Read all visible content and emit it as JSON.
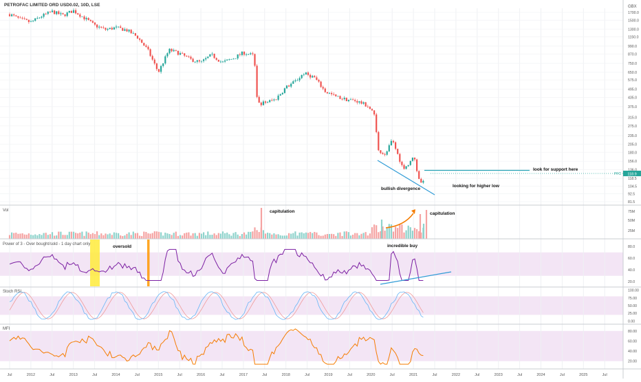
{
  "header": {
    "symbol_title": "PETROFAC LIMITED ORD USD0.02, 10D, LSE",
    "currency": "GBX"
  },
  "colors": {
    "up": "#26a69a",
    "down": "#ef5350",
    "purple": "#7b1fa2",
    "orange": "#f57c00",
    "band": "#f3e5f5",
    "support_line": "#26a3b5",
    "trend_line": "#2f9bd6",
    "highlight_yellow": "#ffeb3b",
    "highlight_orange": "#ff9800",
    "grid": "#eef0f3",
    "axis_text": "#555555"
  },
  "chart_data": [
    {
      "type": "candlestick",
      "title": "PETROFAC LIMITED ORD USD0.02, 10D, LSE",
      "scale": "log",
      "y_ticks": [
        81.5,
        92.5,
        104.5,
        118.5,
        136.0,
        156.0,
        180.0,
        205.0,
        235.0,
        275.0,
        315.0,
        375.0,
        435.0,
        495.0,
        575.0,
        650.0,
        750.0,
        870.0,
        990.0,
        1150.0,
        1300.0,
        1500.0,
        1700.0
      ],
      "last_price_label": "118.9",
      "last_price_tag": "PFC",
      "close_path": [
        [
          "2011-07",
          1650
        ],
        [
          "2011-10",
          1520
        ],
        [
          "2012-01",
          1450
        ],
        [
          "2012-04",
          1600
        ],
        [
          "2012-07",
          1720
        ],
        [
          "2012-10",
          1620
        ],
        [
          "2013-01",
          1750
        ],
        [
          "2013-04",
          1560
        ],
        [
          "2013-07",
          1380
        ],
        [
          "2013-10",
          1290
        ],
        [
          "2014-01",
          1330
        ],
        [
          "2014-04",
          1280
        ],
        [
          "2014-07",
          1150
        ],
        [
          "2014-10",
          930
        ],
        [
          "2015-01",
          650
        ],
        [
          "2015-04",
          930
        ],
        [
          "2015-07",
          880
        ],
        [
          "2015-10",
          800
        ],
        [
          "2016-01",
          760
        ],
        [
          "2016-04",
          860
        ],
        [
          "2016-07",
          760
        ],
        [
          "2016-10",
          810
        ],
        [
          "2017-01",
          890
        ],
        [
          "2017-04",
          850
        ],
        [
          "2017-05",
          390
        ],
        [
          "2017-07",
          400
        ],
        [
          "2017-10",
          420
        ],
        [
          "2018-01",
          510
        ],
        [
          "2018-04",
          570
        ],
        [
          "2018-06",
          640
        ],
        [
          "2018-09",
          600
        ],
        [
          "2018-12",
          480
        ],
        [
          "2019-03",
          440
        ],
        [
          "2019-06",
          420
        ],
        [
          "2019-09",
          410
        ],
        [
          "2019-12",
          380
        ],
        [
          "2020-02",
          330
        ],
        [
          "2020-03",
          190
        ],
        [
          "2020-05",
          170
        ],
        [
          "2020-07",
          220
        ],
        [
          "2020-10",
          140
        ],
        [
          "2020-12",
          150
        ],
        [
          "2021-01",
          175
        ],
        [
          "2021-02",
          135
        ],
        [
          "2021-03",
          108
        ],
        [
          "2021-04",
          118.9
        ]
      ],
      "x_ticks": [
        "Jul",
        "2012",
        "Jul",
        "2013",
        "Jul",
        "2014",
        "Jul",
        "2015",
        "Jul",
        "2016",
        "Jul",
        "2017",
        "Jul",
        "2018",
        "Jul",
        "2019",
        "Jul",
        "2020",
        "Jul",
        "2021",
        "Jul",
        "2022",
        "Jul",
        "2023",
        "Jul",
        "2024",
        "Jul",
        "2025",
        "Jul"
      ],
      "annotations": [
        "look for support here",
        "bullish divergence",
        "looking for higher low"
      ]
    },
    {
      "type": "bar",
      "title": "Vol",
      "y_ticks": [
        "75M",
        "50M",
        "25M"
      ],
      "annotations": [
        "capitulation",
        "capitulation"
      ]
    },
    {
      "type": "line",
      "title": "Power of 3 - Over bought/sold - 1 day chart only",
      "y_ticks": [
        80.0,
        60.0,
        40.0,
        20.0
      ],
      "band": [
        30,
        70
      ],
      "annotations": [
        "oversold",
        "incredible buy"
      ]
    },
    {
      "type": "line",
      "title": "Stoch RSI",
      "y_ticks": [
        100.0,
        75.0,
        50.0,
        25.0,
        0.0
      ],
      "band": [
        20,
        80
      ]
    },
    {
      "type": "line",
      "title": "MFI",
      "y_ticks": [
        80.0,
        60.0,
        40.0,
        20.0
      ],
      "band": [
        20,
        80
      ]
    }
  ]
}
